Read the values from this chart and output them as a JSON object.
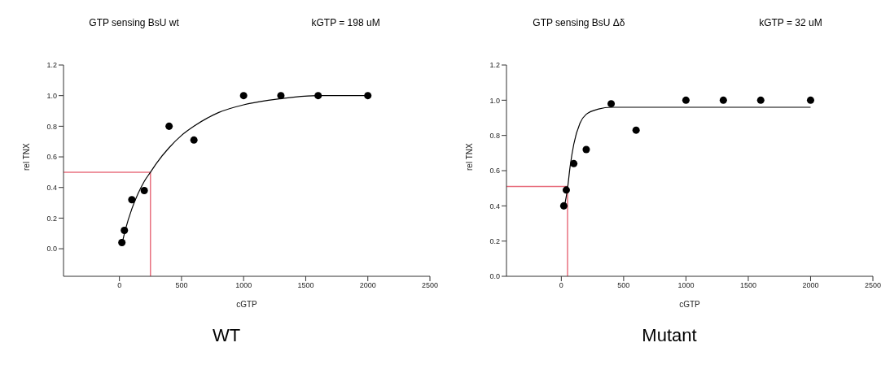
{
  "chart_data": [
    {
      "type": "scatter",
      "title": "GTP sensing  BsU wt",
      "annotations": [
        "kGTP = 198 uM",
        "WT"
      ],
      "xlabel": "cGTP",
      "ylabel": "rel TNX",
      "xlim": [
        -450,
        2500
      ],
      "xticks": [
        0,
        500,
        1000,
        1500,
        2000,
        2500
      ],
      "ylim": [
        -0.18,
        1.2
      ],
      "yticks": [
        {
          "value": 0,
          "label": "0.0"
        },
        {
          "value": 0.2,
          "label": "0.2"
        },
        {
          "value": 0.4,
          "label": "0.4"
        },
        {
          "value": 0.6,
          "label": "0.6"
        },
        {
          "value": 0.8,
          "label": "0.8"
        },
        {
          "value": 1.0,
          "label": "1.0"
        },
        {
          "value": 1.2,
          "label": "1.2"
        }
      ],
      "grid": false,
      "marker": "circle",
      "series": [
        {
          "color": "#000000",
          "x": [
            20,
            40,
            100,
            200,
            400,
            600,
            1000,
            1300,
            1600,
            2000
          ],
          "values": [
            0.04,
            0.12,
            0.32,
            0.38,
            0.8,
            0.71,
            1.0,
            1.0,
            1.0,
            1.0
          ]
        },
        {
          "type": "line",
          "color": "#000000",
          "marker": "none",
          "x": [
            20,
            50,
            100,
            150,
            200,
            250,
            300,
            400,
            500,
            600,
            800,
            1000,
            1200,
            1400,
            1600,
            2000
          ],
          "values": [
            0.03,
            0.13,
            0.26,
            0.36,
            0.44,
            0.5,
            0.56,
            0.66,
            0.74,
            0.8,
            0.89,
            0.94,
            0.97,
            0.99,
            1.0,
            1.0
          ]
        }
      ],
      "ref_lines": [
        {
          "axis": "y",
          "value": 0.5,
          "color": "#e8707f"
        },
        {
          "axis": "x",
          "value": 250,
          "color": "#e8707f"
        }
      ]
    },
    {
      "type": "scatter",
      "title": "GTP sensing  BsU Δδ",
      "annotations": [
        "kGTP = 32 uM",
        "Mutant"
      ],
      "xlabel": "cGTP",
      "ylabel": "rel TNX",
      "xlim": [
        -440,
        2500
      ],
      "xticks": [
        0,
        500,
        1000,
        1500,
        2000,
        2500
      ],
      "ylim": [
        0,
        1.2
      ],
      "yticks": [
        {
          "value": 0,
          "label": "0.0"
        },
        {
          "value": 0.2,
          "label": "0.2"
        },
        {
          "value": 0.4,
          "label": "0.4"
        },
        {
          "value": 0.6,
          "label": "0.6"
        },
        {
          "value": 0.8,
          "label": "0.8"
        },
        {
          "value": 1.0,
          "label": "1.0"
        },
        {
          "value": 1.2,
          "label": "1.2"
        }
      ],
      "grid": false,
      "marker": "circle",
      "series": [
        {
          "color": "#000000",
          "x": [
            20,
            40,
            100,
            200,
            400,
            600,
            1000,
            1300,
            1600,
            2000
          ],
          "values": [
            0.4,
            0.49,
            0.64,
            0.72,
            0.98,
            0.83,
            1.0,
            1.0,
            1.0,
            1.0
          ]
        },
        {
          "type": "line",
          "color": "#000000",
          "marker": "none",
          "x": [
            20,
            50,
            70,
            100,
            150,
            200,
            300,
            400,
            2000
          ],
          "values": [
            0.38,
            0.5,
            0.62,
            0.75,
            0.87,
            0.92,
            0.95,
            0.96,
            0.96
          ]
        }
      ],
      "ref_lines": [
        {
          "axis": "y",
          "value": 0.51,
          "color": "#e8707f"
        },
        {
          "axis": "x",
          "value": 50,
          "color": "#e8707f"
        }
      ]
    }
  ]
}
